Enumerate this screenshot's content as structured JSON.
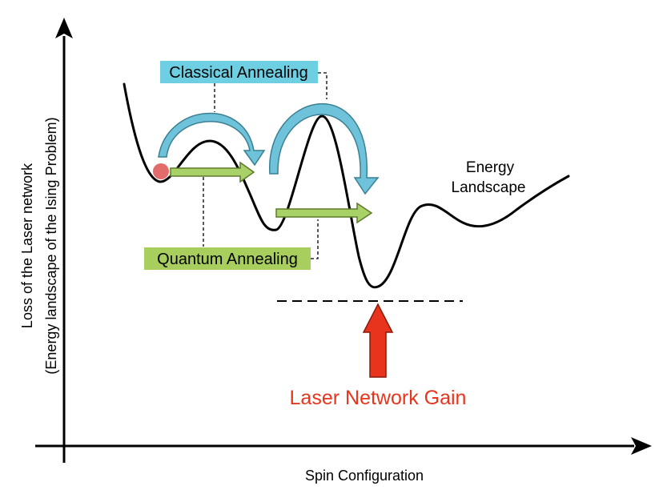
{
  "axes": {
    "y_label_line1": "Loss of the Laser network",
    "y_label_line2": "(Energy landscape of the Ising Problem)",
    "x_label": "Spin Configuration"
  },
  "labels": {
    "classical_annealing": "Classical Annealing",
    "quantum_annealing": "Quantum Annealing",
    "energy_landscape_line1": "Energy",
    "energy_landscape_line2": "Landscape",
    "laser_network_gain": "Laser Network Gain"
  },
  "colors": {
    "classical_box": "#6ecfe3",
    "classical_arrow": "#6ec3db",
    "quantum_box": "#a8cf5e",
    "quantum_arrow": "#a8d168",
    "gain_arrow": "#e8341c",
    "gain_text": "#e8341c",
    "ball": "#e36b6b",
    "curve": "#000000"
  },
  "icons": {
    "ball": "spin-state-ball-icon",
    "gain_arrow": "up-arrow-icon"
  }
}
